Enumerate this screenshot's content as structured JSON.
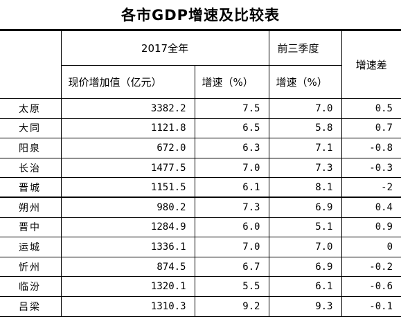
{
  "title": "各市GDP增速及比较表",
  "header": {
    "group_2017": "2017全年",
    "group_q3": "前三季度",
    "diff": "增速差",
    "value_added": "现价增加值（亿元）",
    "growth_2017": "增速（%）",
    "growth_q3": "增速（%）"
  },
  "rows": [
    {
      "city": "太原",
      "value": "3382.2",
      "growth_2017": "7.5",
      "growth_q3": "7.0",
      "diff": "0.5"
    },
    {
      "city": "大同",
      "value": "1121.8",
      "growth_2017": "6.5",
      "growth_q3": "5.8",
      "diff": "0.7"
    },
    {
      "city": "阳泉",
      "value": "672.0",
      "growth_2017": "6.3",
      "growth_q3": "7.1",
      "diff": "-0.8"
    },
    {
      "city": "长治",
      "value": "1477.5",
      "growth_2017": "7.0",
      "growth_q3": "7.3",
      "diff": "-0.3"
    },
    {
      "city": "晋城",
      "value": "1151.5",
      "growth_2017": "6.1",
      "growth_q3": "8.1",
      "diff": "-2"
    },
    {
      "city": "朔州",
      "value": "980.2",
      "growth_2017": "7.3",
      "growth_q3": "6.9",
      "diff": "0.4"
    },
    {
      "city": "晋中",
      "value": "1284.9",
      "growth_2017": "6.0",
      "growth_q3": "5.1",
      "diff": "0.9"
    },
    {
      "city": "运城",
      "value": "1336.1",
      "growth_2017": "7.0",
      "growth_q3": "7.0",
      "diff": "0"
    },
    {
      "city": "忻州",
      "value": "874.5",
      "growth_2017": "6.7",
      "growth_q3": "6.9",
      "diff": "-0.2"
    },
    {
      "city": "临汾",
      "value": "1320.1",
      "growth_2017": "5.5",
      "growth_q3": "6.1",
      "diff": "-0.6"
    },
    {
      "city": "吕梁",
      "value": "1310.3",
      "growth_2017": "9.2",
      "growth_q3": "9.3",
      "diff": "-0.1"
    }
  ]
}
